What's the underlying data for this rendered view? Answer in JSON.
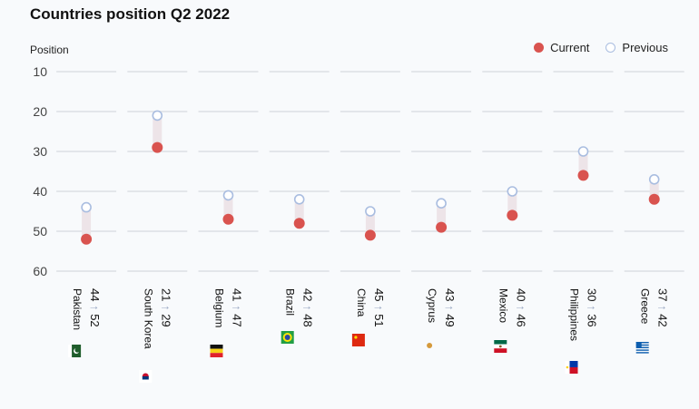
{
  "chart_data": {
    "type": "scatter",
    "title": "Countries position Q2 2022",
    "ylabel": "Position",
    "ylim": [
      10,
      60
    ],
    "yticks": [
      10,
      20,
      30,
      40,
      50,
      60
    ],
    "y_inverted": true,
    "grid": true,
    "legend_position": "top-right",
    "legend": [
      "Current",
      "Previous"
    ],
    "arrow_symbol": "↑",
    "colors": {
      "current": "#d9534f",
      "previous": "#a9bde0",
      "range": "#ede4e8"
    },
    "countries": [
      {
        "name": "Pakistan",
        "current": 52,
        "previous": 44,
        "current_label": "52",
        "previous_label": "44",
        "flag": "pakistan-flag-icon"
      },
      {
        "name": "South Korea",
        "current": 29,
        "previous": 21,
        "current_label": "29",
        "previous_label": "21",
        "flag": "south-korea-flag-icon"
      },
      {
        "name": "Belgium",
        "current": 47,
        "previous": 41,
        "current_label": "47",
        "previous_label": "41",
        "flag": "belgium-flag-icon"
      },
      {
        "name": "Brazil",
        "current": 48,
        "previous": 42,
        "current_label": "48",
        "previous_label": "42",
        "flag": "brazil-flag-icon"
      },
      {
        "name": "China",
        "current": 51,
        "previous": 45,
        "current_label": "51",
        "previous_label": "45",
        "flag": "china-flag-icon"
      },
      {
        "name": "Cyprus",
        "current": 49,
        "previous": 43,
        "current_label": "49",
        "previous_label": "43",
        "flag": "cyprus-flag-icon"
      },
      {
        "name": "Mexico",
        "current": 46,
        "previous": 40,
        "current_label": "46",
        "previous_label": "40",
        "flag": "mexico-flag-icon"
      },
      {
        "name": "Philippines",
        "current": 36,
        "previous": 30,
        "current_label": "36",
        "previous_label": "30",
        "flag": "philippines-flag-icon"
      },
      {
        "name": "Greece",
        "current": 42,
        "previous": 37,
        "current_label": "42",
        "previous_label": "37",
        "flag": "greece-flag-icon"
      }
    ]
  }
}
